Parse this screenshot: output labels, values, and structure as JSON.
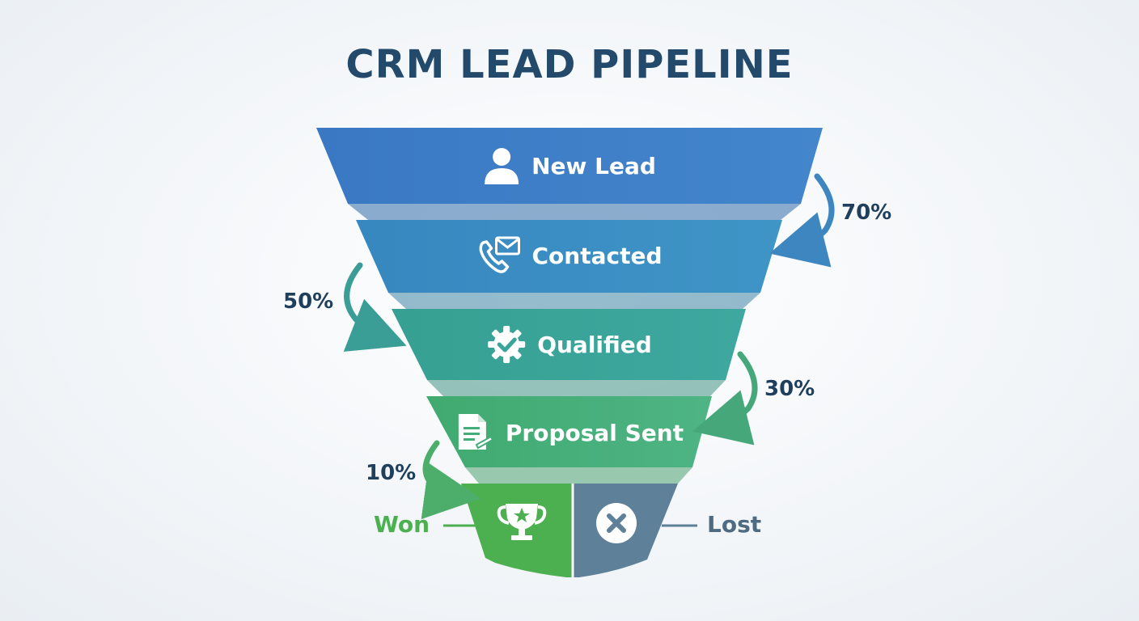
{
  "title": "CRM LEAD PIPELINE",
  "stages": [
    {
      "label": "New Lead",
      "icon": "person-icon",
      "color": "#3d7fc7"
    },
    {
      "label": "Contacted",
      "icon": "phone-mail-icon",
      "color": "#3a8fc2"
    },
    {
      "label": "Qualified",
      "icon": "gear-check-icon",
      "color": "#3aa39a"
    },
    {
      "label": "Proposal Sent",
      "icon": "document-icon",
      "color": "#45ad7a"
    }
  ],
  "conversions": [
    {
      "from": "New Lead",
      "to": "Contacted",
      "rate": "70%"
    },
    {
      "from": "Contacted",
      "to": "Qualified",
      "rate": "50%"
    },
    {
      "from": "Qualified",
      "to": "Proposal Sent",
      "rate": "30%"
    },
    {
      "from": "Proposal Sent",
      "to": "Won",
      "rate": "10%"
    }
  ],
  "outcomes": {
    "won": {
      "label": "Won",
      "icon": "trophy-icon",
      "color": "#4caf50"
    },
    "lost": {
      "label": "Lost",
      "icon": "x-circle-icon",
      "color": "#5c7f9b"
    }
  },
  "colors": {
    "title": "#234a6b",
    "percent_text": "#1f3f5c",
    "lost_text": "#4f6b82",
    "won_text": "#4caf50"
  }
}
